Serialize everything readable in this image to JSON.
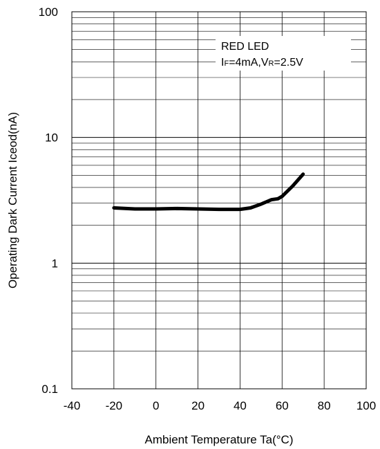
{
  "chart_data": {
    "type": "line",
    "title": "",
    "xlabel": "Ambient Temperature Ta(°C)",
    "ylabel": "Operating Dark Current Iceod(nA)",
    "x_scale": "linear",
    "y_scale": "log",
    "xlim": [
      -40,
      100
    ],
    "ylim": [
      0.1,
      100
    ],
    "x_ticks": [
      -40,
      -20,
      0,
      20,
      40,
      60,
      80,
      100
    ],
    "x_tick_labels": [
      "-40",
      "-20",
      "0",
      "20",
      "40",
      "60",
      "80",
      "100"
    ],
    "y_ticks": [
      0.1,
      1,
      10,
      100
    ],
    "y_tick_labels": [
      "0.1",
      "1",
      "10",
      "100"
    ],
    "grid": true,
    "legend_position": "top-right",
    "legend": {
      "line1": "RED LED",
      "if_prefix": "I",
      "if_sub": "F",
      "if_value": "=4mA,",
      "vr_prefix": "V",
      "vr_sub": "R",
      "vr_value": "=2.5V"
    },
    "series": [
      {
        "x": [
          -20,
          -10,
          0,
          10,
          20,
          30,
          40,
          45,
          50,
          55,
          58,
          60,
          65,
          70
        ],
        "y": [
          2.75,
          2.7,
          2.7,
          2.72,
          2.7,
          2.68,
          2.68,
          2.75,
          2.95,
          3.2,
          3.25,
          3.4,
          4.1,
          5.1
        ]
      }
    ],
    "colors": {
      "line": "#000000",
      "grid": "#000000"
    }
  }
}
